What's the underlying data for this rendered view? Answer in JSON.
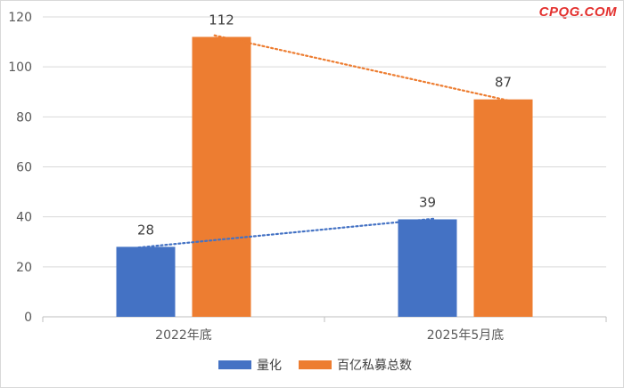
{
  "watermark": "CPQG.COM",
  "chart_data": {
    "type": "bar",
    "categories": [
      "2022年底",
      "2025年5月底"
    ],
    "series": [
      {
        "name": "量化",
        "values": [
          28,
          39
        ],
        "color": "#4472c4"
      },
      {
        "name": "百亿私募总数",
        "values": [
          112,
          87
        ],
        "color": "#ed7d31"
      }
    ],
    "ylim": [
      0,
      120
    ],
    "yticks": [
      0,
      20,
      40,
      60,
      80,
      100,
      120
    ],
    "grid": true,
    "trendlines": true,
    "legend_position": "bottom",
    "title": "",
    "xlabel": "",
    "ylabel": ""
  }
}
